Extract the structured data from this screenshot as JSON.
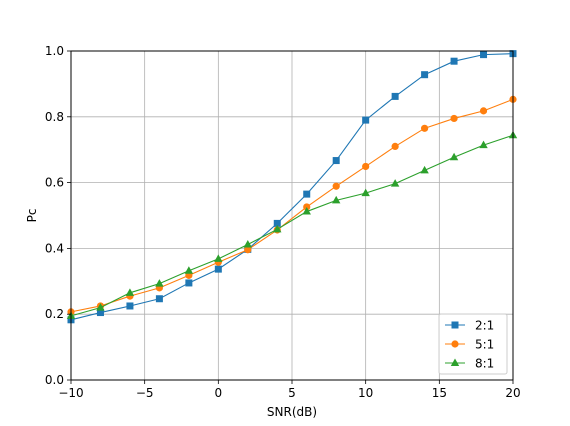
{
  "chart_data": {
    "type": "line",
    "title": "",
    "xlabel": "SNR(dB)",
    "ylabel": "Pc",
    "xlim": [
      -10,
      20
    ],
    "ylim": [
      0,
      1
    ],
    "xticks": [
      -10,
      -5,
      0,
      5,
      10,
      15,
      20
    ],
    "xtick_labels": [
      "−10",
      "−5",
      "0",
      "5",
      "10",
      "15",
      "20"
    ],
    "yticks": [
      0,
      0.2,
      0.4,
      0.6,
      0.8,
      1.0
    ],
    "ytick_labels": [
      "0.0",
      "0.2",
      "0.4",
      "0.6",
      "0.8",
      "1.0"
    ],
    "grid": true,
    "legend_position": "bottom-right",
    "x": [
      -10,
      -8,
      -6,
      -4,
      -2,
      0,
      2,
      4,
      6,
      8,
      10,
      12,
      14,
      16,
      18,
      20
    ],
    "series": [
      {
        "name": "2:1",
        "color": "#1f77b4",
        "marker": "square",
        "values": [
          0.183,
          0.205,
          0.225,
          0.247,
          0.295,
          0.337,
          0.397,
          0.476,
          0.565,
          0.667,
          0.79,
          0.862,
          0.928,
          0.969,
          0.989,
          0.992
        ]
      },
      {
        "name": "5:1",
        "color": "#ff7f0e",
        "marker": "circle",
        "values": [
          0.207,
          0.225,
          0.255,
          0.28,
          0.318,
          0.358,
          0.396,
          0.456,
          0.526,
          0.589,
          0.649,
          0.71,
          0.765,
          0.795,
          0.818,
          0.853
        ]
      },
      {
        "name": "8:1",
        "color": "#2ca02c",
        "marker": "triangle",
        "values": [
          0.195,
          0.22,
          0.265,
          0.293,
          0.332,
          0.368,
          0.412,
          0.458,
          0.512,
          0.546,
          0.568,
          0.597,
          0.637,
          0.677,
          0.714,
          0.744
        ]
      }
    ]
  }
}
